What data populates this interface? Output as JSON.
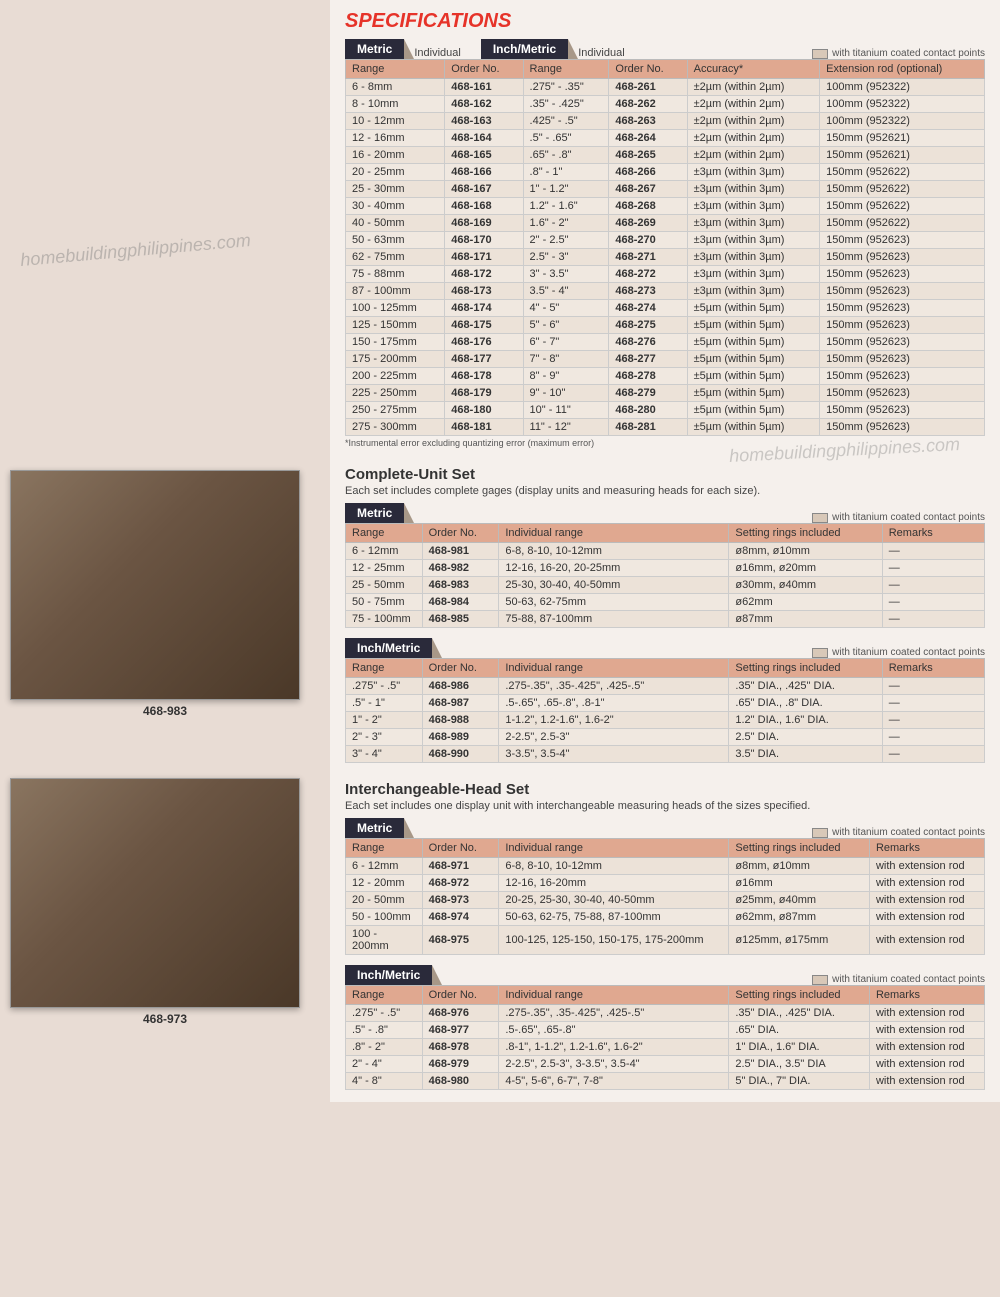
{
  "title": "SPECIFICATIONS",
  "tabs": {
    "metric": "Metric",
    "inchmetric": "Inch/Metric",
    "individual": "Individual"
  },
  "legend": "with titanium coated contact points",
  "footnote": "*Instrumental error excluding quantizing error (maximum error)",
  "spec_headers": {
    "range": "Range",
    "order": "Order No.",
    "accuracy": "Accuracy*",
    "ext": "Extension rod (optional)"
  },
  "spec_rows": [
    {
      "mr": "6 - 8mm",
      "mo": "468-161",
      "ir": ".275\" - .35\"",
      "io": "468-261",
      "acc": "±2µm (within 2µm)",
      "ext": "100mm (952322)"
    },
    {
      "mr": "8 - 10mm",
      "mo": "468-162",
      "ir": ".35\" - .425\"",
      "io": "468-262",
      "acc": "±2µm (within 2µm)",
      "ext": "100mm (952322)"
    },
    {
      "mr": "10 - 12mm",
      "mo": "468-163",
      "ir": ".425\" - .5\"",
      "io": "468-263",
      "acc": "±2µm (within 2µm)",
      "ext": "100mm (952322)"
    },
    {
      "mr": "12 - 16mm",
      "mo": "468-164",
      "ir": ".5\" - .65\"",
      "io": "468-264",
      "acc": "±2µm (within 2µm)",
      "ext": "150mm (952621)"
    },
    {
      "mr": "16 - 20mm",
      "mo": "468-165",
      "ir": ".65\" - .8\"",
      "io": "468-265",
      "acc": "±2µm (within 2µm)",
      "ext": "150mm (952621)"
    },
    {
      "mr": "20 - 25mm",
      "mo": "468-166",
      "ir": ".8\" - 1\"",
      "io": "468-266",
      "acc": "±3µm (within 3µm)",
      "ext": "150mm (952622)"
    },
    {
      "mr": "25 - 30mm",
      "mo": "468-167",
      "ir": "1\" - 1.2\"",
      "io": "468-267",
      "acc": "±3µm (within 3µm)",
      "ext": "150mm (952622)"
    },
    {
      "mr": "30 - 40mm",
      "mo": "468-168",
      "ir": "1.2\" - 1.6\"",
      "io": "468-268",
      "acc": "±3µm (within 3µm)",
      "ext": "150mm (952622)"
    },
    {
      "mr": "40 - 50mm",
      "mo": "468-169",
      "ir": "1.6\" - 2\"",
      "io": "468-269",
      "acc": "±3µm (within 3µm)",
      "ext": "150mm (952622)"
    },
    {
      "mr": "50 - 63mm",
      "mo": "468-170",
      "ir": "2\" - 2.5\"",
      "io": "468-270",
      "acc": "±3µm (within 3µm)",
      "ext": "150mm (952623)"
    },
    {
      "mr": "62 - 75mm",
      "mo": "468-171",
      "ir": "2.5\" - 3\"",
      "io": "468-271",
      "acc": "±3µm (within 3µm)",
      "ext": "150mm (952623)"
    },
    {
      "mr": "75 - 88mm",
      "mo": "468-172",
      "ir": "3\" - 3.5\"",
      "io": "468-272",
      "acc": "±3µm (within 3µm)",
      "ext": "150mm (952623)"
    },
    {
      "mr": "87 - 100mm",
      "mo": "468-173",
      "ir": "3.5\" - 4\"",
      "io": "468-273",
      "acc": "±3µm (within 3µm)",
      "ext": "150mm (952623)"
    },
    {
      "mr": "100 - 125mm",
      "mo": "468-174",
      "ir": "4\" - 5\"",
      "io": "468-274",
      "acc": "±5µm (within 5µm)",
      "ext": "150mm (952623)"
    },
    {
      "mr": "125 - 150mm",
      "mo": "468-175",
      "ir": "5\" - 6\"",
      "io": "468-275",
      "acc": "±5µm (within 5µm)",
      "ext": "150mm (952623)"
    },
    {
      "mr": "150 - 175mm",
      "mo": "468-176",
      "ir": "6\" - 7\"",
      "io": "468-276",
      "acc": "±5µm (within 5µm)",
      "ext": "150mm (952623)"
    },
    {
      "mr": "175 - 200mm",
      "mo": "468-177",
      "ir": "7\" - 8\"",
      "io": "468-277",
      "acc": "±5µm (within 5µm)",
      "ext": "150mm (952623)"
    },
    {
      "mr": "200 - 225mm",
      "mo": "468-178",
      "ir": "8\" - 9\"",
      "io": "468-278",
      "acc": "±5µm (within 5µm)",
      "ext": "150mm (952623)"
    },
    {
      "mr": "225 - 250mm",
      "mo": "468-179",
      "ir": "9\" - 10\"",
      "io": "468-279",
      "acc": "±5µm (within 5µm)",
      "ext": "150mm (952623)"
    },
    {
      "mr": "250 - 275mm",
      "mo": "468-180",
      "ir": "10\" - 11\"",
      "io": "468-280",
      "acc": "±5µm (within 5µm)",
      "ext": "150mm (952623)"
    },
    {
      "mr": "275 - 300mm",
      "mo": "468-181",
      "ir": "11\" - 12\"",
      "io": "468-281",
      "acc": "±5µm (within 5µm)",
      "ext": "150mm (952623)"
    }
  ],
  "complete": {
    "title": "Complete-Unit Set",
    "desc": "Each set includes complete gages (display units and measuring heads for each size).",
    "headers": {
      "range": "Range",
      "order": "Order No.",
      "ind": "Individual range",
      "rings": "Setting rings included",
      "rem": "Remarks"
    },
    "metric_rows": [
      {
        "r": "6 - 12mm",
        "o": "468-981",
        "i": "6-8, 8-10, 10-12mm",
        "s": "ø8mm, ø10mm",
        "m": "—"
      },
      {
        "r": "12 - 25mm",
        "o": "468-982",
        "i": "12-16, 16-20, 20-25mm",
        "s": "ø16mm, ø20mm",
        "m": "—"
      },
      {
        "r": "25 - 50mm",
        "o": "468-983",
        "i": "25-30, 30-40, 40-50mm",
        "s": "ø30mm, ø40mm",
        "m": "—"
      },
      {
        "r": "50 - 75mm",
        "o": "468-984",
        "i": "50-63, 62-75mm",
        "s": "ø62mm",
        "m": "—"
      },
      {
        "r": "75 - 100mm",
        "o": "468-985",
        "i": "75-88, 87-100mm",
        "s": "ø87mm",
        "m": "—"
      }
    ],
    "inch_rows": [
      {
        "r": ".275\" - .5\"",
        "o": "468-986",
        "i": ".275-.35\", .35-.425\", .425-.5\"",
        "s": ".35\" DIA., .425\" DIA.",
        "m": "—"
      },
      {
        "r": ".5\" - 1\"",
        "o": "468-987",
        "i": ".5-.65\", .65-.8\", .8-1\"",
        "s": ".65\" DIA., .8\" DIA.",
        "m": "—"
      },
      {
        "r": "1\" - 2\"",
        "o": "468-988",
        "i": "1-1.2\", 1.2-1.6\", 1.6-2\"",
        "s": "1.2\" DIA., 1.6\" DIA.",
        "m": "—"
      },
      {
        "r": "2\" - 3\"",
        "o": "468-989",
        "i": "2-2.5\", 2.5-3\"",
        "s": "2.5\" DIA.",
        "m": "—"
      },
      {
        "r": "3\" - 4\"",
        "o": "468-990",
        "i": "3-3.5\", 3.5-4\"",
        "s": "3.5\" DIA.",
        "m": "—"
      }
    ]
  },
  "inter": {
    "title": "Interchangeable-Head Set",
    "desc": "Each set includes one display unit with interchangeable measuring heads of the sizes specified.",
    "metric_rows": [
      {
        "r": "6 - 12mm",
        "o": "468-971",
        "i": "6-8, 8-10, 10-12mm",
        "s": "ø8mm, ø10mm",
        "m": "with extension rod"
      },
      {
        "r": "12 - 20mm",
        "o": "468-972",
        "i": "12-16, 16-20mm",
        "s": "ø16mm",
        "m": "with extension rod"
      },
      {
        "r": "20 - 50mm",
        "o": "468-973",
        "i": "20-25, 25-30, 30-40, 40-50mm",
        "s": "ø25mm, ø40mm",
        "m": "with extension rod"
      },
      {
        "r": "50 - 100mm",
        "o": "468-974",
        "i": "50-63, 62-75, 75-88, 87-100mm",
        "s": "ø62mm, ø87mm",
        "m": "with extension rod"
      },
      {
        "r": "100 - 200mm",
        "o": "468-975",
        "i": "100-125, 125-150, 150-175, 175-200mm",
        "s": "ø125mm, ø175mm",
        "m": "with extension rod"
      }
    ],
    "inch_rows": [
      {
        "r": ".275\" - .5\"",
        "o": "468-976",
        "i": ".275-.35\", .35-.425\", .425-.5\"",
        "s": ".35\" DIA., .425\" DIA.",
        "m": "with extension rod"
      },
      {
        "r": ".5\" - .8\"",
        "o": "468-977",
        "i": ".5-.65\", .65-.8\"",
        "s": ".65\" DIA.",
        "m": "with extension rod"
      },
      {
        "r": ".8\" - 2\"",
        "o": "468-978",
        "i": ".8-1\", 1-1.2\", 1.2-1.6\", 1.6-2\"",
        "s": "1\" DIA., 1.6\" DIA.",
        "m": "with extension rod"
      },
      {
        "r": "2\" - 4\"",
        "o": "468-979",
        "i": "2-2.5\", 2.5-3\", 3-3.5\", 3.5-4\"",
        "s": "2.5\" DIA., 3.5\" DIA",
        "m": "with extension rod"
      },
      {
        "r": "4\" - 8\"",
        "o": "468-980",
        "i": "4-5\", 5-6\", 6-7\", 7-8\"",
        "s": "5\" DIA., 7\" DIA.",
        "m": "with extension rod"
      }
    ]
  },
  "photos": {
    "c1": "468-983",
    "c2": "468-973"
  },
  "watermark": "homebuildingphilippines.com"
}
